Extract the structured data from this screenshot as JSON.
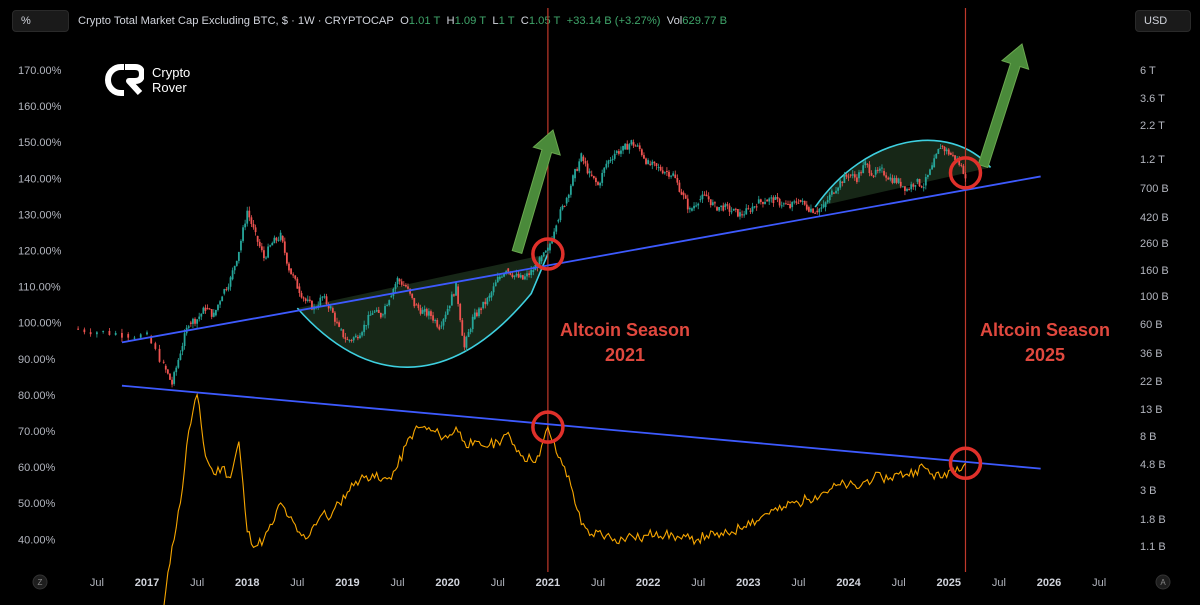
{
  "toolbar": {
    "percent_label": "%",
    "currency_label": "USD"
  },
  "legend": {
    "title": "Crypto Total Market Cap Excluding BTC, $ · 1W · CRYPTOCAP",
    "open_key": "O",
    "open_value": "1.01 T",
    "high_key": "H",
    "high_value": "1.09 T",
    "low_key": "L",
    "low_value": "1 T",
    "close_key": "C",
    "close_value": "1.05 T",
    "change": "+33.14 B (+3.27%)",
    "volume_key": "Vol",
    "volume_value": "629.77 B"
  },
  "logo": {
    "line1": "Crypto",
    "line2": "Rover"
  },
  "annotations": {
    "season_2021_line1": "Altcoin Season",
    "season_2021_line2": "2021",
    "season_2025_line1": "Altcoin Season",
    "season_2025_line2": "2025"
  },
  "corner_labels": {
    "left": "Z",
    "right": "A"
  },
  "colors": {
    "candle_up": "#26a69a",
    "candle_down": "#ef5350",
    "dominance_line": "#f7a600",
    "trend_line": "#3d5afe",
    "cup_outline": "#3ed0e0",
    "cup_fill": "#1b2e1b",
    "arrow": "#4a8a3a",
    "circle": "#e0302a",
    "vertical_marker": "#c0392b",
    "season_text": "#e0483e"
  },
  "chart_data": {
    "type": "line",
    "y_left_ticks": [
      "170.00%",
      "160.00%",
      "150.00%",
      "140.00%",
      "130.00%",
      "120.00%",
      "110.00%",
      "100.00%",
      "90.00%",
      "80.00%",
      "70.00%",
      "60.00%",
      "50.00%",
      "40.00%"
    ],
    "y_left_range": [
      35,
      178
    ],
    "y_right_ticks": [
      "6 T",
      "3.6 T",
      "2.2 T",
      "1.2 T",
      "700 B",
      "420 B",
      "260 B",
      "160 B",
      "100 B",
      "60 B",
      "36 B",
      "22 B",
      "13 B",
      "8 B",
      "4.8 B",
      "3 B",
      "1.8 B",
      "1.1 B"
    ],
    "y_right_scale": "log",
    "x_ticks": [
      "Jul",
      "2017",
      "Jul",
      "2018",
      "Jul",
      "2019",
      "Jul",
      "2020",
      "Jul",
      "2021",
      "Jul",
      "2022",
      "Jul",
      "2023",
      "Jul",
      "2024",
      "Jul",
      "2025",
      "Jul",
      "2026",
      "Jul"
    ],
    "series": [
      {
        "chart_type": "candlestick",
        "points": [
          [
            "2016-04",
            98.3
          ],
          [
            "2016-07",
            97.5
          ],
          [
            "2016-10",
            96.8
          ],
          [
            "2017-01",
            96.2
          ],
          [
            "2017-03",
            88
          ],
          [
            "2017-04",
            83
          ],
          [
            "2017-05",
            92
          ],
          [
            "2017-06",
            100
          ],
          [
            "2017-07",
            101
          ],
          [
            "2017-08",
            104
          ],
          [
            "2017-09",
            102
          ],
          [
            "2017-10",
            108
          ],
          [
            "2017-11",
            112
          ],
          [
            "2017-12",
            120
          ],
          [
            "2018-01",
            131
          ],
          [
            "2018-02",
            124
          ],
          [
            "2018-03",
            118
          ],
          [
            "2018-04",
            122
          ],
          [
            "2018-05",
            124
          ],
          [
            "2018-06",
            115
          ],
          [
            "2018-07",
            110
          ],
          [
            "2018-08",
            106
          ],
          [
            "2018-09",
            104
          ],
          [
            "2018-10",
            107
          ],
          [
            "2018-11",
            104
          ],
          [
            "2018-12",
            98
          ],
          [
            "2019-01",
            95
          ],
          [
            "2019-02",
            96
          ],
          [
            "2019-03",
            99
          ],
          [
            "2019-04",
            103
          ],
          [
            "2019-05",
            102
          ],
          [
            "2019-06",
            107
          ],
          [
            "2019-07",
            112
          ],
          [
            "2019-08",
            110
          ],
          [
            "2019-09",
            105
          ],
          [
            "2019-10",
            103
          ],
          [
            "2019-11",
            102
          ],
          [
            "2019-12",
            99
          ],
          [
            "2020-01",
            104
          ],
          [
            "2020-02",
            110
          ],
          [
            "2020-03",
            93
          ],
          [
            "2020-04",
            101
          ],
          [
            "2020-05",
            104
          ],
          [
            "2020-06",
            107
          ],
          [
            "2020-07",
            112
          ],
          [
            "2020-08",
            115
          ],
          [
            "2020-09",
            113
          ],
          [
            "2020-10",
            112
          ],
          [
            "2020-11",
            114
          ],
          [
            "2020-12",
            117
          ],
          [
            "2021-01",
            120
          ],
          [
            "2021-02",
            128
          ],
          [
            "2021-03",
            133
          ],
          [
            "2021-04",
            140
          ],
          [
            "2021-05",
            146
          ],
          [
            "2021-06",
            141
          ],
          [
            "2021-07",
            138
          ],
          [
            "2021-08",
            144
          ],
          [
            "2021-09",
            147
          ],
          [
            "2021-10",
            148
          ],
          [
            "2021-11",
            150
          ],
          [
            "2021-12",
            148
          ],
          [
            "2022-01",
            144
          ],
          [
            "2022-02",
            143
          ],
          [
            "2022-03",
            142
          ],
          [
            "2022-04",
            141
          ],
          [
            "2022-05",
            136
          ],
          [
            "2022-06",
            131
          ],
          [
            "2022-07",
            134
          ],
          [
            "2022-08",
            135
          ],
          [
            "2022-09",
            132
          ],
          [
            "2022-10",
            132
          ],
          [
            "2022-11",
            131
          ],
          [
            "2022-12",
            130
          ],
          [
            "2023-01",
            131
          ],
          [
            "2023-02",
            133
          ],
          [
            "2023-03",
            134
          ],
          [
            "2023-04",
            134
          ],
          [
            "2023-05",
            133
          ],
          [
            "2023-06",
            132
          ],
          [
            "2023-07",
            134
          ],
          [
            "2023-08",
            132
          ],
          [
            "2023-09",
            131
          ],
          [
            "2023-10",
            132
          ],
          [
            "2023-11",
            136
          ],
          [
            "2023-12",
            139
          ],
          [
            "2024-01",
            141
          ],
          [
            "2024-02",
            140
          ],
          [
            "2024-03",
            144
          ],
          [
            "2024-04",
            141
          ],
          [
            "2024-05",
            142
          ],
          [
            "2024-06",
            140
          ],
          [
            "2024-07",
            139
          ],
          [
            "2024-08",
            137
          ],
          [
            "2024-09",
            139
          ],
          [
            "2024-10",
            138
          ],
          [
            "2024-11",
            143
          ],
          [
            "2024-12",
            149
          ],
          [
            "2025-01",
            147
          ],
          [
            "2025-02",
            145
          ],
          [
            "2025-03",
            141
          ]
        ]
      },
      {
        "chart_type": "line",
        "points": [
          [
            "2017-03",
            21
          ],
          [
            "2017-04",
            38
          ],
          [
            "2017-05",
            50
          ],
          [
            "2017-06",
            70
          ],
          [
            "2017-07",
            80
          ],
          [
            "2017-08",
            63
          ],
          [
            "2017-09",
            58
          ],
          [
            "2017-10",
            60
          ],
          [
            "2017-11",
            57
          ],
          [
            "2017-12",
            67
          ],
          [
            "2018-01",
            42
          ],
          [
            "2018-02",
            38
          ],
          [
            "2018-03",
            40
          ],
          [
            "2018-04",
            44
          ],
          [
            "2018-05",
            50
          ],
          [
            "2018-06",
            46
          ],
          [
            "2018-07",
            42
          ],
          [
            "2018-08",
            40
          ],
          [
            "2018-09",
            44
          ],
          [
            "2018-10",
            47
          ],
          [
            "2018-11",
            46
          ],
          [
            "2018-12",
            50
          ],
          [
            "2019-01",
            53
          ],
          [
            "2019-02",
            56
          ],
          [
            "2019-03",
            57
          ],
          [
            "2019-04",
            58
          ],
          [
            "2019-05",
            56
          ],
          [
            "2019-06",
            57
          ],
          [
            "2019-07",
            60
          ],
          [
            "2019-08",
            66
          ],
          [
            "2019-09",
            70
          ],
          [
            "2019-10",
            71
          ],
          [
            "2019-11",
            70
          ],
          [
            "2019-12",
            69
          ],
          [
            "2020-01",
            68
          ],
          [
            "2020-02",
            71
          ],
          [
            "2020-03",
            67
          ],
          [
            "2020-04",
            66
          ],
          [
            "2020-05",
            66
          ],
          [
            "2020-06",
            66
          ],
          [
            "2020-07",
            67
          ],
          [
            "2020-08",
            69
          ],
          [
            "2020-09",
            66
          ],
          [
            "2020-10",
            63
          ],
          [
            "2020-11",
            62
          ],
          [
            "2020-12",
            63
          ],
          [
            "2021-01",
            71
          ],
          [
            "2021-02",
            64
          ],
          [
            "2021-03",
            60
          ],
          [
            "2021-04",
            53
          ],
          [
            "2021-05",
            44
          ],
          [
            "2021-06",
            41
          ],
          [
            "2021-07",
            42
          ],
          [
            "2021-08",
            41
          ],
          [
            "2021-09",
            40
          ],
          [
            "2021-10",
            40
          ],
          [
            "2021-11",
            41
          ],
          [
            "2021-12",
            40
          ],
          [
            "2022-01",
            41
          ],
          [
            "2022-02",
            42
          ],
          [
            "2022-03",
            41
          ],
          [
            "2022-04",
            41
          ],
          [
            "2022-05",
            40
          ],
          [
            "2022-06",
            40
          ],
          [
            "2022-07",
            40
          ],
          [
            "2022-08",
            41
          ],
          [
            "2022-09",
            41
          ],
          [
            "2022-10",
            41
          ],
          [
            "2022-11",
            42
          ],
          [
            "2022-12",
            43
          ],
          [
            "2023-01",
            45
          ],
          [
            "2023-02",
            45
          ],
          [
            "2023-03",
            47
          ],
          [
            "2023-04",
            48
          ],
          [
            "2023-05",
            48
          ],
          [
            "2023-06",
            50
          ],
          [
            "2023-07",
            50
          ],
          [
            "2023-08",
            51
          ],
          [
            "2023-09",
            52
          ],
          [
            "2023-10",
            53
          ],
          [
            "2023-11",
            54
          ],
          [
            "2023-12",
            55
          ],
          [
            "2024-01",
            55
          ],
          [
            "2024-02",
            54
          ],
          [
            "2024-03",
            56
          ],
          [
            "2024-04",
            57
          ],
          [
            "2024-05",
            57
          ],
          [
            "2024-06",
            57
          ],
          [
            "2024-07",
            58
          ],
          [
            "2024-08",
            58
          ],
          [
            "2024-09",
            59
          ],
          [
            "2024-10",
            60
          ],
          [
            "2024-11",
            58
          ],
          [
            "2024-12",
            57
          ],
          [
            "2025-01",
            59
          ],
          [
            "2025-02",
            60
          ],
          [
            "2025-03",
            61
          ]
        ]
      }
    ],
    "trend_lines": [
      {
        "from": [
          "2016-10",
          94.5
        ],
        "to": [
          "2025-12",
          140.5
        ]
      },
      {
        "from": [
          "2016-10",
          82.5
        ],
        "to": [
          "2025-12",
          59.5
        ]
      }
    ],
    "markers": [
      {
        "date": "2021-01",
        "value": 119
      },
      {
        "date": "2025-03",
        "value": 141.5
      },
      {
        "date": "2021-01",
        "value": 71
      },
      {
        "date": "2025-03",
        "value": 61
      }
    ],
    "vertical_markers": [
      "2021-01",
      "2025-03"
    ],
    "grid": false
  }
}
